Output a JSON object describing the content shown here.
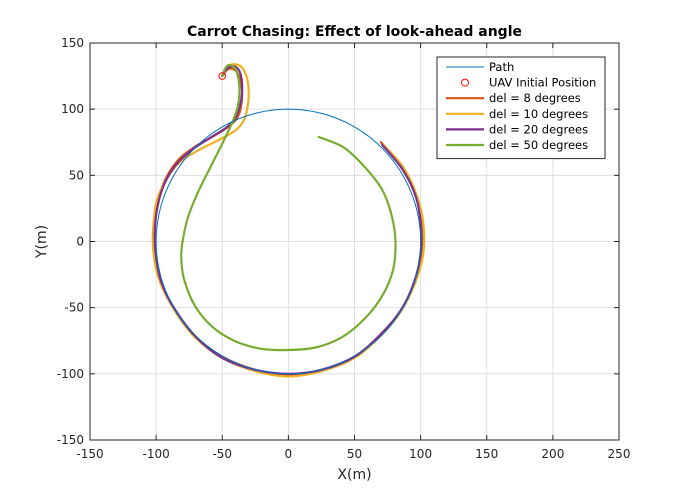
{
  "chart_data": {
    "type": "line",
    "title": "Carrot Chasing: Effect of look-ahead angle",
    "xlabel": "X(m)",
    "ylabel": "Y(m)",
    "xlim": [
      -150,
      250
    ],
    "ylim": [
      -150,
      150
    ],
    "xticks": [
      -150,
      -100,
      -50,
      0,
      50,
      100,
      150,
      200,
      250
    ],
    "yticks": [
      -150,
      -100,
      -50,
      0,
      50,
      100,
      150
    ],
    "xtick_labels": [
      "-150",
      "-100",
      "-50",
      "0",
      "50",
      "100",
      "150",
      "200",
      "250"
    ],
    "ytick_labels": [
      "-150",
      "-100",
      "-50",
      "0",
      "50",
      "100",
      "150"
    ],
    "grid": true,
    "legend_position": "top-right",
    "series": [
      {
        "name": "Path",
        "kind": "path",
        "color": "#0072BD",
        "width": 1,
        "circle": {
          "cx": 0,
          "cy": 0,
          "r": 100
        }
      },
      {
        "name": "UAV Initial Position",
        "kind": "marker",
        "color": "#FF0000",
        "x": [
          -50
        ],
        "y": [
          125
        ]
      },
      {
        "name": "del = 8 degrees",
        "kind": "trajectory",
        "color": "#D95319",
        "width": 2.2,
        "x": [
          -50,
          -46,
          -41,
          -37,
          -35,
          -36,
          -39,
          -45,
          -56,
          -70,
          -83,
          -93,
          -99,
          -102,
          -102,
          -98,
          -88,
          -72,
          -50,
          -25,
          0,
          25,
          50,
          70,
          85,
          96,
          101,
          101,
          96,
          86,
          70
        ],
        "y": [
          125,
          130,
          130,
          124,
          112,
          101,
          93,
          87,
          80,
          72,
          62,
          47,
          30,
          12,
          -7,
          -27,
          -48,
          -70,
          -87,
          -97,
          -101,
          -97,
          -87,
          -70,
          -52,
          -30,
          -8,
          14,
          36,
          56,
          75
        ]
      },
      {
        "name": "del = 10 degrees",
        "kind": "trajectory",
        "color": "#EDB120",
        "width": 2.2,
        "x": [
          -50,
          -45,
          -37,
          -32,
          -30,
          -31,
          -34,
          -40,
          -52,
          -68,
          -82,
          -93,
          -100,
          -102,
          -102,
          -98,
          -88,
          -72,
          -50,
          -25,
          0,
          25,
          50,
          70,
          85,
          96,
          102,
          102,
          97,
          87,
          72
        ],
        "y": [
          125,
          133,
          133,
          126,
          114,
          101,
          91,
          84,
          77,
          69,
          60,
          46,
          29,
          11,
          -8,
          -28,
          -49,
          -71,
          -88,
          -98,
          -102,
          -98,
          -88,
          -71,
          -53,
          -31,
          -9,
          14,
          35,
          56,
          73
        ]
      },
      {
        "name": "del = 20 degrees",
        "kind": "trajectory",
        "color": "#7E2F8E",
        "width": 2.2,
        "x": [
          -50,
          -46,
          -40,
          -36,
          -35,
          -37,
          -41,
          -47,
          -58,
          -72,
          -85,
          -94,
          -99,
          -101,
          -100,
          -96,
          -86,
          -70,
          -50,
          -25,
          0,
          25,
          50,
          70,
          85,
          95,
          100,
          100,
          96,
          86,
          71
        ],
        "y": [
          125,
          131,
          132,
          126,
          113,
          101,
          92,
          86,
          79,
          70,
          58,
          43,
          26,
          7,
          -12,
          -31,
          -51,
          -72,
          -88,
          -97,
          -100,
          -97,
          -87,
          -70,
          -52,
          -31,
          -9,
          14,
          35,
          55,
          73
        ]
      },
      {
        "name": "del = 50 degrees",
        "kind": "trajectory",
        "color": "#77AC30",
        "width": 2.2,
        "x": [
          -50,
          -47,
          -43,
          -39,
          -37,
          -38,
          -42,
          -49,
          -58,
          -68,
          -76,
          -80,
          -81,
          -79,
          -71,
          -58,
          -41,
          -21,
          0,
          21,
          41,
          58,
          71,
          79,
          81,
          78,
          71,
          58,
          42,
          23
        ],
        "y": [
          125,
          132,
          133,
          128,
          116,
          103,
          91,
          76,
          58,
          38,
          18,
          0,
          -12,
          -28,
          -48,
          -64,
          -75,
          -81,
          -82,
          -80,
          -72,
          -58,
          -41,
          -22,
          0,
          20,
          39,
          56,
          71,
          79
        ]
      }
    ]
  }
}
